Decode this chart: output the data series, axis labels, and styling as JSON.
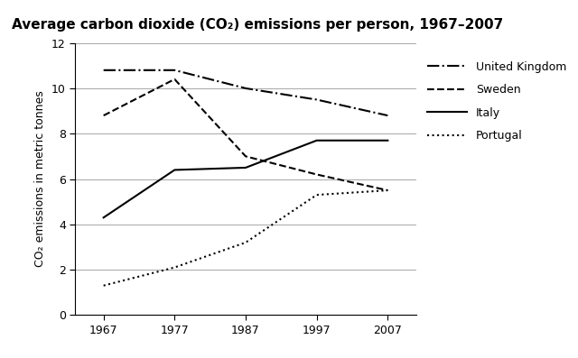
{
  "title": "Average carbon dioxide (CO₂) emissions per person, 1967–2007",
  "ylabel": "CO₂ emissions in metric tonnes",
  "years": [
    1967,
    1977,
    1987,
    1997,
    2007
  ],
  "united_kingdom": [
    10.8,
    10.8,
    10.0,
    9.5,
    8.8
  ],
  "sweden": [
    8.8,
    10.4,
    7.0,
    6.2,
    5.5
  ],
  "italy": [
    4.3,
    6.4,
    6.5,
    7.7,
    7.7
  ],
  "portugal": [
    1.3,
    2.1,
    3.2,
    5.3,
    5.5
  ],
  "ylim": [
    0,
    12
  ],
  "yticks": [
    0,
    2,
    4,
    6,
    8,
    10,
    12
  ],
  "xticks": [
    1967,
    1977,
    1987,
    1997,
    2007
  ],
  "line_color": "#000000",
  "bg_color": "#ffffff",
  "legend_entries": [
    "United Kingdom",
    "Sweden",
    "Italy",
    "Portugal"
  ],
  "title_fontsize": 11,
  "label_fontsize": 9,
  "tick_fontsize": 9
}
